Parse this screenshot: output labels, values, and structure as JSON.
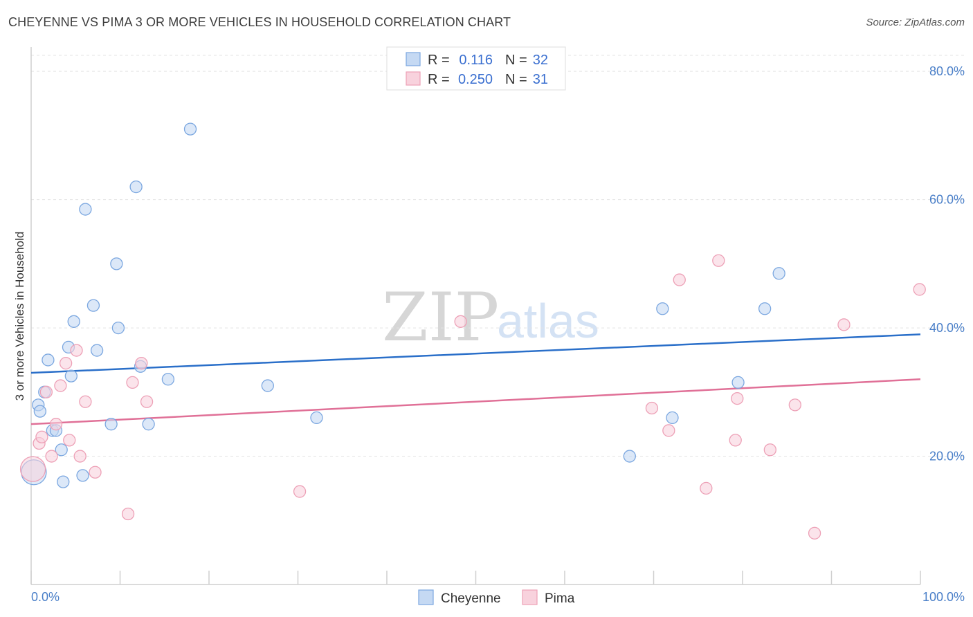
{
  "header": {
    "title": "CHEYENNE VS PIMA 3 OR MORE VEHICLES IN HOUSEHOLD CORRELATION CHART",
    "source": "Source: ZipAtlas.com"
  },
  "watermark": {
    "zip": "ZIP",
    "atlas": "atlas"
  },
  "legend": {
    "r_label": "R =",
    "n_label": "N =",
    "entries": [
      {
        "r": "0.116",
        "n": "32"
      },
      {
        "r": "0.250",
        "n": "31"
      }
    ]
  },
  "chart_data": {
    "type": "scatter",
    "title": "CHEYENNE VS PIMA 3 OR MORE VEHICLES IN HOUSEHOLD CORRELATION CHART",
    "xlabel": "",
    "ylabel": "3 or more Vehicles in Household",
    "xlim": [
      0,
      100
    ],
    "ylim": [
      0,
      80
    ],
    "x_tick_labels": [
      "0.0%",
      "100.0%"
    ],
    "y_ticks": [
      20,
      40,
      60,
      80
    ],
    "y_tick_labels": [
      "20.0%",
      "40.0%",
      "60.0%",
      "80.0%"
    ],
    "grid": true,
    "series": [
      {
        "name": "Cheyenne",
        "color": "#7ba7e0",
        "fill": "#c5d9f3",
        "line_color": "#2a6fc9",
        "trend": {
          "x": [
            0,
            100
          ],
          "y": [
            33.0,
            39.0
          ]
        },
        "points": [
          {
            "x": 0.3,
            "y": 17.5,
            "big": true
          },
          {
            "x": 0.8,
            "y": 28.0
          },
          {
            "x": 1.0,
            "y": 27.0
          },
          {
            "x": 1.5,
            "y": 30.0
          },
          {
            "x": 1.9,
            "y": 35.0
          },
          {
            "x": 2.4,
            "y": 24.0
          },
          {
            "x": 2.8,
            "y": 24.0
          },
          {
            "x": 3.4,
            "y": 21.0
          },
          {
            "x": 3.6,
            "y": 16.0
          },
          {
            "x": 4.2,
            "y": 37.0
          },
          {
            "x": 4.5,
            "y": 32.5
          },
          {
            "x": 4.8,
            "y": 41.0
          },
          {
            "x": 5.8,
            "y": 17.0
          },
          {
            "x": 6.1,
            "y": 58.5
          },
          {
            "x": 7.0,
            "y": 43.5
          },
          {
            "x": 7.4,
            "y": 36.5
          },
          {
            "x": 9.0,
            "y": 25.0
          },
          {
            "x": 9.6,
            "y": 50.0
          },
          {
            "x": 9.8,
            "y": 40.0
          },
          {
            "x": 11.8,
            "y": 62.0
          },
          {
            "x": 12.3,
            "y": 34.0
          },
          {
            "x": 13.2,
            "y": 25.0
          },
          {
            "x": 15.4,
            "y": 32.0
          },
          {
            "x": 17.9,
            "y": 71.0
          },
          {
            "x": 26.6,
            "y": 31.0
          },
          {
            "x": 32.1,
            "y": 26.0
          },
          {
            "x": 67.3,
            "y": 20.0
          },
          {
            "x": 71.0,
            "y": 43.0
          },
          {
            "x": 72.1,
            "y": 26.0
          },
          {
            "x": 79.5,
            "y": 31.5
          },
          {
            "x": 82.5,
            "y": 43.0
          },
          {
            "x": 84.1,
            "y": 48.5
          }
        ]
      },
      {
        "name": "Pima",
        "color": "#eda0b6",
        "fill": "#f8d2dd",
        "line_color": "#e07097",
        "trend": {
          "x": [
            0,
            100
          ],
          "y": [
            25.0,
            32.0
          ]
        },
        "points": [
          {
            "x": 0.2,
            "y": 18.0,
            "big": true
          },
          {
            "x": 0.9,
            "y": 22.0
          },
          {
            "x": 1.2,
            "y": 23.0
          },
          {
            "x": 1.7,
            "y": 30.0
          },
          {
            "x": 2.3,
            "y": 20.0
          },
          {
            "x": 2.8,
            "y": 25.0
          },
          {
            "x": 3.3,
            "y": 31.0
          },
          {
            "x": 3.9,
            "y": 34.5
          },
          {
            "x": 4.3,
            "y": 22.5
          },
          {
            "x": 5.1,
            "y": 36.5
          },
          {
            "x": 5.5,
            "y": 20.0
          },
          {
            "x": 6.1,
            "y": 28.5
          },
          {
            "x": 7.2,
            "y": 17.5
          },
          {
            "x": 10.9,
            "y": 11.0
          },
          {
            "x": 11.4,
            "y": 31.5
          },
          {
            "x": 12.4,
            "y": 34.5
          },
          {
            "x": 13.0,
            "y": 28.5
          },
          {
            "x": 30.2,
            "y": 14.5
          },
          {
            "x": 48.3,
            "y": 41.0
          },
          {
            "x": 69.8,
            "y": 27.5
          },
          {
            "x": 71.7,
            "y": 24.0
          },
          {
            "x": 72.9,
            "y": 47.5
          },
          {
            "x": 75.9,
            "y": 15.0
          },
          {
            "x": 77.3,
            "y": 50.5
          },
          {
            "x": 79.2,
            "y": 22.5
          },
          {
            "x": 79.4,
            "y": 29.0
          },
          {
            "x": 83.1,
            "y": 21.0
          },
          {
            "x": 85.9,
            "y": 28.0
          },
          {
            "x": 88.1,
            "y": 8.0
          },
          {
            "x": 91.4,
            "y": 40.5
          },
          {
            "x": 99.9,
            "y": 46.0
          }
        ]
      }
    ]
  }
}
